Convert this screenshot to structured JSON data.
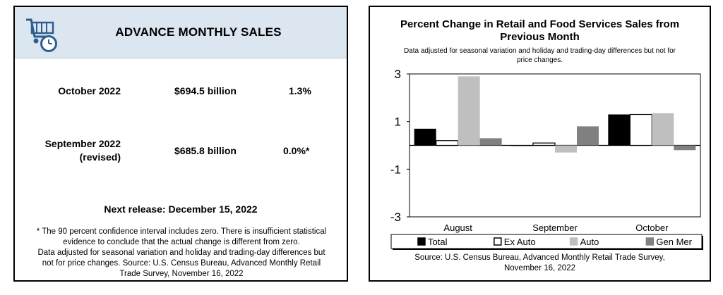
{
  "left_panel": {
    "icon": "shopping-cart-clock-icon",
    "title": "ADVANCE MONTHLY SALES",
    "rows": [
      {
        "label": "October 2022",
        "amount": "$694.5 billion",
        "pct": "1.3%"
      },
      {
        "label_line1": "September 2022",
        "label_line2": "(revised)",
        "amount": "$685.8 billion",
        "pct": "0.0%*"
      }
    ],
    "next_release": "Next release: December 15, 2022",
    "footnote": [
      "* The 90 percent confidence interval includes zero. There is insufficient statistical",
      "evidence to conclude that the actual change is different from zero.",
      "Data adjusted for seasonal variation and holiday and trading-day differences but",
      "not for price changes. Source: U.S. Census Bureau, Advanced Monthly Retail",
      "Trade Survey, November 16, 2022"
    ],
    "colors": {
      "header_bg": "#dce6f1",
      "icon": "#2e5d8f"
    }
  },
  "chart_data": {
    "type": "bar",
    "title_line1": "Percent Change in Retail and Food Services Sales from",
    "title_line2": "Previous Month",
    "subtitle_line1": "Data adjusted for seasonal variation and holiday and trading-day differences but not for",
    "subtitle_line2": "price changes.",
    "categories": [
      "August",
      "September",
      "October"
    ],
    "series": [
      {
        "name": "Total",
        "color": "#000000",
        "values": [
          0.7,
          0.0,
          1.3
        ]
      },
      {
        "name": "Ex Auto",
        "color": "#ffffff",
        "values": [
          0.2,
          0.1,
          1.3
        ]
      },
      {
        "name": "Auto",
        "color": "#bfbfbf",
        "values": [
          2.9,
          -0.3,
          1.35
        ]
      },
      {
        "name": "Gen Mer",
        "color": "#808080",
        "values": [
          0.3,
          0.8,
          -0.2
        ]
      }
    ],
    "ylim": [
      -3,
      3
    ],
    "yticks": [
      "3",
      "1",
      "-1",
      "-3"
    ],
    "ytick_values": [
      3,
      1,
      -1,
      -3
    ],
    "legend_position": "bottom",
    "source_line1": "Source: U.S. Census Bureau, Advanced Monthly Retail Trade Survey,",
    "source_line2": "November 16, 2022"
  }
}
